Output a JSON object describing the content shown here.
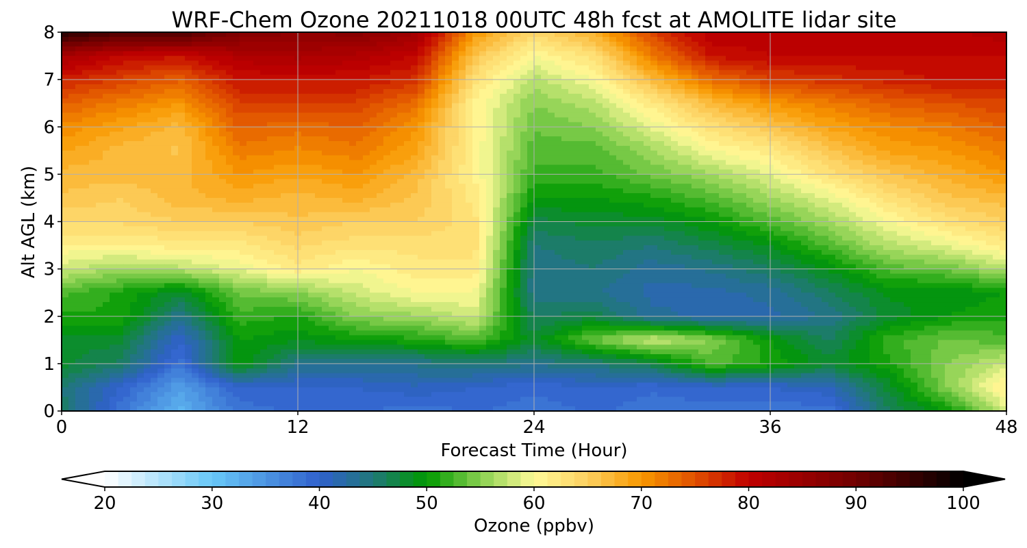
{
  "chart_data": {
    "type": "heatmap",
    "title": "WRF-Chem Ozone  20211018 00UTC 48h fcst at AMOLITE lidar site",
    "xlabel": "Forecast Time (Hour)",
    "ylabel": "Alt AGL (km)",
    "xlim": [
      0,
      48
    ],
    "ylim": [
      0,
      8
    ],
    "x_ticks": [
      0,
      12,
      24,
      36,
      48
    ],
    "y_ticks": [
      0,
      1,
      2,
      3,
      4,
      5,
      6,
      7,
      8
    ],
    "grid": true,
    "x": [
      0,
      3,
      6,
      9,
      12,
      15,
      18,
      21,
      24,
      27,
      30,
      33,
      36,
      39,
      42,
      45,
      48
    ],
    "y": [
      0,
      0.5,
      1,
      1.5,
      2,
      2.5,
      3,
      3.5,
      4,
      4.5,
      5,
      5.5,
      6,
      6.5,
      7,
      7.5,
      8
    ],
    "z_unit": "ppbv",
    "z": [
      [
        46,
        38,
        32,
        38,
        39,
        39,
        38,
        39,
        38,
        39,
        38,
        38,
        38,
        38,
        46,
        50,
        58
      ],
      [
        45,
        40,
        34,
        40,
        40,
        40,
        41,
        40,
        39,
        40,
        39,
        40,
        40,
        41,
        48,
        55,
        62
      ],
      [
        48,
        46,
        38,
        50,
        44,
        44,
        44,
        45,
        44,
        45,
        47,
        53,
        51,
        48,
        51,
        55,
        58
      ],
      [
        48,
        48,
        40,
        50,
        49,
        50,
        51,
        53,
        48,
        54,
        58,
        55,
        50,
        46,
        52,
        54,
        53
      ],
      [
        51,
        51,
        44,
        52,
        51,
        55,
        56,
        58,
        46,
        47,
        43,
        42,
        42,
        44,
        48,
        50,
        51
      ],
      [
        53,
        51,
        48,
        54,
        55,
        58,
        60,
        60,
        44,
        44,
        42,
        42,
        43,
        46,
        49,
        49,
        50
      ],
      [
        58,
        56,
        57,
        59,
        62,
        60,
        62,
        62,
        44,
        45,
        43,
        44,
        46,
        49,
        53,
        54,
        57
      ],
      [
        61,
        61,
        62,
        62,
        64,
        63,
        63,
        63,
        45,
        46,
        45,
        47,
        49,
        53,
        57,
        59,
        62
      ],
      [
        64,
        64,
        65,
        65,
        66,
        65,
        65,
        63,
        47,
        48,
        48,
        50,
        53,
        56,
        60,
        63,
        65
      ],
      [
        66,
        65,
        67,
        68,
        67,
        68,
        66,
        62,
        50,
        50,
        51,
        53,
        56,
        59,
        63,
        66,
        67
      ],
      [
        67,
        67,
        67,
        70,
        69,
        70,
        67,
        61,
        52,
        52,
        54,
        56,
        59,
        63,
        66,
        68,
        70
      ],
      [
        69,
        67,
        66,
        72,
        71,
        72,
        69,
        61,
        53,
        53,
        56,
        60,
        62,
        66,
        69,
        70,
        72
      ],
      [
        71,
        69,
        67,
        74,
        73,
        74,
        70,
        61,
        54,
        55,
        59,
        63,
        66,
        69,
        71,
        72,
        74
      ],
      [
        74,
        72,
        70,
        76,
        76,
        76,
        73,
        61,
        55,
        57,
        62,
        67,
        70,
        72,
        74,
        75,
        76
      ],
      [
        78,
        76,
        74,
        79,
        79,
        79,
        77,
        63,
        57,
        60,
        67,
        73,
        76,
        77,
        78,
        79,
        79
      ],
      [
        83,
        80,
        79,
        82,
        83,
        82,
        80,
        66,
        60,
        63,
        72,
        79,
        80,
        80,
        80,
        80,
        80
      ],
      [
        97,
        93,
        94,
        88,
        86,
        87,
        84,
        70,
        64,
        68,
        76,
        81,
        81,
        81,
        81,
        81,
        82
      ]
    ],
    "colorbar": {
      "label": "Ozone  (ppbv)",
      "min": 20,
      "max": 100,
      "ticks": [
        20,
        30,
        40,
        50,
        60,
        70,
        80,
        90,
        100
      ],
      "extend": "both",
      "stops": [
        {
          "v": 20,
          "c": "#ffffff"
        },
        {
          "v": 30,
          "c": "#68c8f8"
        },
        {
          "v": 40,
          "c": "#3060cc"
        },
        {
          "v": 45,
          "c": "#207878"
        },
        {
          "v": 50,
          "c": "#009900"
        },
        {
          "v": 55,
          "c": "#88d050"
        },
        {
          "v": 60,
          "c": "#fffa98"
        },
        {
          "v": 65,
          "c": "#fdd060"
        },
        {
          "v": 70,
          "c": "#f89800"
        },
        {
          "v": 75,
          "c": "#e05000"
        },
        {
          "v": 80,
          "c": "#c00000"
        },
        {
          "v": 90,
          "c": "#700000"
        },
        {
          "v": 100,
          "c": "#000000"
        }
      ],
      "under_color": "#ffffff",
      "over_color": "#000000"
    }
  }
}
